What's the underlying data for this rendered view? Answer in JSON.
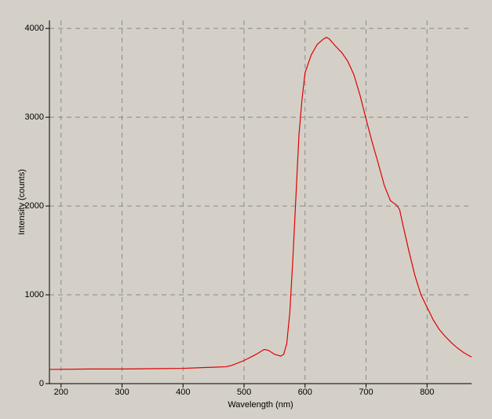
{
  "chart_data": {
    "type": "line",
    "xlabel": "Wavelength (nm)",
    "ylabel": "Intensity (counts)",
    "x": [
      181,
      250,
      300,
      350,
      400,
      450,
      470,
      480,
      500,
      520,
      533,
      540,
      550,
      560,
      565,
      570,
      575,
      580,
      585,
      590,
      595,
      600,
      610,
      620,
      630,
      635,
      640,
      650,
      660,
      670,
      680,
      690,
      700,
      710,
      720,
      730,
      740,
      750,
      755,
      760,
      770,
      780,
      790,
      800,
      810,
      820,
      830,
      840,
      850,
      860,
      870,
      873
    ],
    "values": [
      160,
      165,
      165,
      168,
      172,
      185,
      190,
      205,
      260,
      330,
      385,
      375,
      330,
      310,
      330,
      450,
      800,
      1400,
      2100,
      2800,
      3200,
      3500,
      3700,
      3820,
      3880,
      3900,
      3880,
      3800,
      3730,
      3630,
      3480,
      3250,
      2980,
      2720,
      2480,
      2230,
      2060,
      2010,
      1960,
      1800,
      1500,
      1220,
      1000,
      860,
      720,
      610,
      530,
      460,
      400,
      350,
      310,
      300
    ],
    "color": "#e00000",
    "xlim": [
      181,
      873
    ],
    "ylim": [
      0,
      4090
    ],
    "xticks": [
      200,
      300,
      400,
      500,
      600,
      700,
      800
    ],
    "yticks": [
      0,
      1000,
      2000,
      3000,
      4000
    ],
    "grid": true
  }
}
